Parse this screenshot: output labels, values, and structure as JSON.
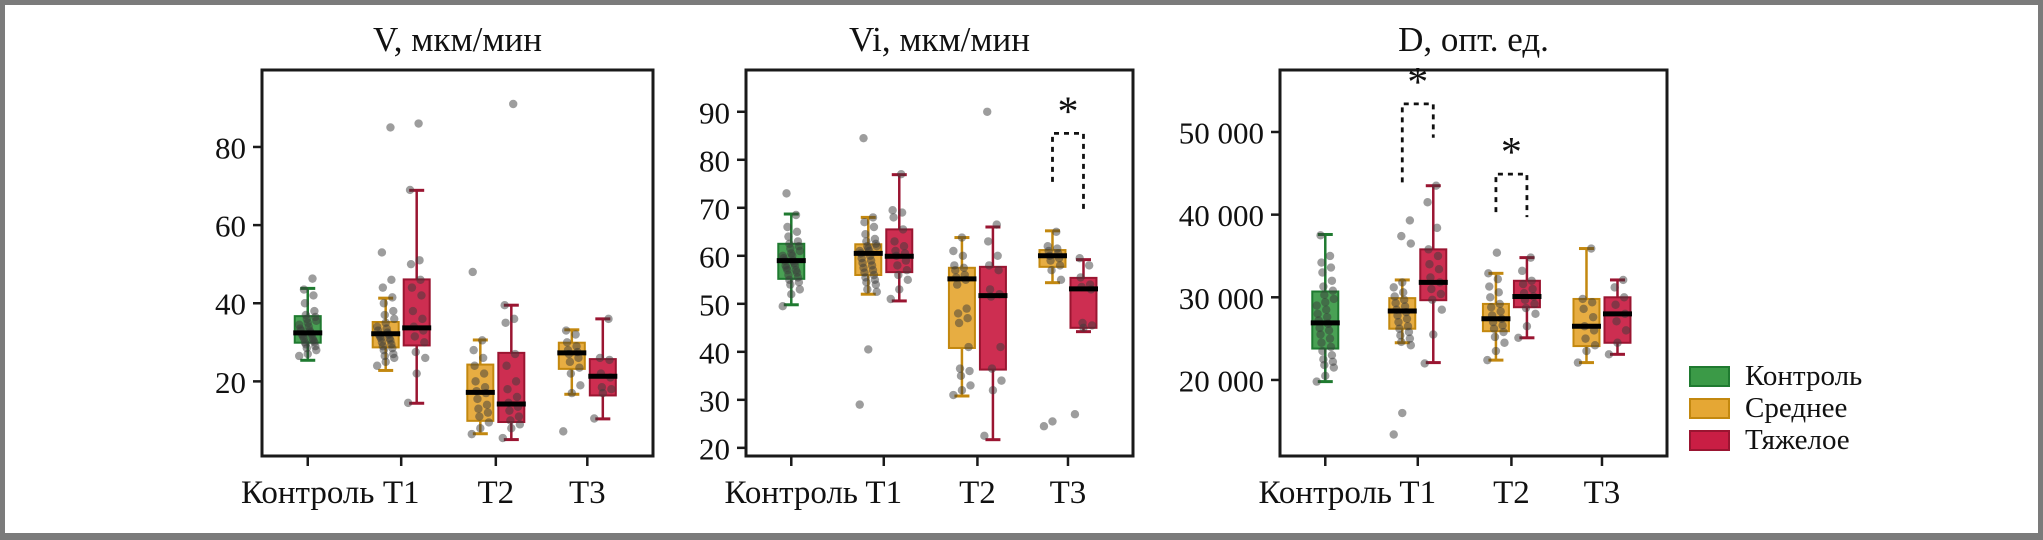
{
  "figure": {
    "background": "#ffffff",
    "border_color": "#7b7b7b",
    "point_color": "#3c3c3c",
    "median_color": "#000000",
    "axis_color": "#1a1a1a"
  },
  "legend": {
    "position": "right",
    "items": [
      {
        "label": "Контроль",
        "color": "#3b9a47",
        "border": "#1f7a30"
      },
      {
        "label": "Среднее",
        "color": "#e5a734",
        "border": "#c3880f"
      },
      {
        "label": "Тяжелое",
        "color": "#c91e44",
        "border": "#9a1531"
      }
    ]
  },
  "chart_data": [
    {
      "type": "box",
      "title": "V, мкм/мин",
      "xlabel": "",
      "ylabel": "",
      "categories": [
        "Контроль",
        "T1",
        "T2",
        "T3"
      ],
      "ylim": [
        0.9,
        99.7
      ],
      "yticks": [
        20,
        40,
        60,
        80
      ],
      "ytick_labels": [
        "20",
        "40",
        "60",
        "80"
      ],
      "grid": false,
      "groups": [
        {
          "category": "Контроль",
          "boxes": [
            {
              "series": "Контроль",
              "whislo": 25.4,
              "q1": 29.9,
              "med": 32.4,
              "q3": 36.7,
              "whishi": 43.8,
              "points": [
                26.5,
                27,
                28,
                28.5,
                29,
                29.5,
                30,
                30,
                30.5,
                31,
                31,
                31.5,
                32,
                32,
                32.5,
                33,
                33,
                33.5,
                34,
                34.5,
                35,
                35.5,
                36,
                36.5,
                37,
                38,
                40,
                42,
                43.5,
                46.3
              ]
            }
          ]
        },
        {
          "category": "T1",
          "boxes": [
            {
              "series": "Среднее",
              "whislo": 22.8,
              "q1": 28.7,
              "med": 32.2,
              "q3": 35.2,
              "whishi": 41.3,
              "points": [
                24,
                25,
                26,
                26.5,
                27,
                28,
                28.5,
                29,
                29.5,
                30,
                30.5,
                31,
                31,
                31.5,
                32,
                32,
                32.5,
                33,
                33.5,
                34,
                35,
                36,
                37,
                38,
                40,
                41.5,
                44,
                46,
                53,
                85
              ]
            },
            {
              "series": "Тяжелое",
              "whislo": 14.4,
              "q1": 29.2,
              "med": 33.7,
              "q3": 46.1,
              "whishi": 68.9,
              "points": [
                14.5,
                22,
                26,
                27.5,
                30,
                31.5,
                33,
                34,
                36,
                38,
                42,
                44,
                46,
                50,
                51,
                69,
                86
              ]
            }
          ]
        },
        {
          "category": "T2",
          "boxes": [
            {
              "series": "Среднее",
              "whislo": 6.6,
              "q1": 9.9,
              "med": 17.2,
              "q3": 24.3,
              "whishi": 30.6,
              "points": [
                6.5,
                8,
                9.5,
                11,
                12,
                13,
                14,
                15.5,
                17,
                17.5,
                18.5,
                20,
                22,
                24,
                26,
                28,
                30.5,
                48
              ]
            },
            {
              "series": "Тяжелое",
              "whislo": 5.1,
              "q1": 9.6,
              "med": 14.2,
              "q3": 27.3,
              "whishi": 39.5,
              "points": [
                5.5,
                8,
                9,
                10,
                11,
                12.5,
                13.5,
                14.5,
                16,
                18,
                20,
                24,
                27,
                35,
                36,
                39.5,
                91
              ]
            }
          ]
        },
        {
          "category": "T3",
          "boxes": [
            {
              "series": "Среднее",
              "whislo": 16.7,
              "q1": 23.2,
              "med": 27.3,
              "q3": 29.9,
              "whishi": 33.2,
              "points": [
                7.2,
                17,
                19,
                22,
                23.5,
                25,
                26,
                27,
                27.5,
                28,
                29,
                30,
                32,
                33
              ]
            },
            {
              "series": "Тяжелое",
              "whislo": 10.4,
              "q1": 16.4,
              "med": 21.3,
              "q3": 25.7,
              "whishi": 36,
              "points": [
                10.5,
                17,
                18,
                18.5,
                21,
                22,
                25.5,
                26,
                36
              ]
            }
          ]
        }
      ],
      "brackets": []
    },
    {
      "type": "box",
      "title": "Vi, мкм/мин",
      "xlabel": "",
      "ylabel": "",
      "categories": [
        "Контроль",
        "T1",
        "T2",
        "T3"
      ],
      "ylim": [
        18.3,
        98.7
      ],
      "yticks": [
        20,
        30,
        40,
        50,
        60,
        70,
        80,
        90
      ],
      "ytick_labels": [
        "20",
        "30",
        "40",
        "50",
        "60",
        "70",
        "80",
        "90"
      ],
      "grid": false,
      "groups": [
        {
          "category": "Контроль",
          "boxes": [
            {
              "series": "Контроль",
              "whislo": 49.8,
              "q1": 55.2,
              "med": 59,
              "q3": 62.5,
              "whishi": 68.7,
              "points": [
                49.5,
                52,
                53,
                54,
                54.5,
                55,
                55.5,
                56,
                56.5,
                57,
                57,
                57.5,
                58,
                58,
                58.5,
                59,
                59,
                59.5,
                60,
                60,
                60.5,
                61,
                61.5,
                62,
                62.5,
                63,
                64,
                65,
                66,
                68.5,
                73
              ]
            }
          ]
        },
        {
          "category": "T1",
          "boxes": [
            {
              "series": "Среднее",
              "whislo": 52,
              "q1": 56,
              "med": 60.5,
              "q3": 62.4,
              "whishi": 68,
              "points": [
                29,
                40.5,
                52.5,
                53,
                54,
                54.5,
                55,
                55.5,
                56,
                56.5,
                57,
                57.5,
                58,
                58.5,
                59,
                59.5,
                60,
                60.5,
                61,
                61,
                61.5,
                62,
                62,
                62.5,
                63,
                63.5,
                64.5,
                66,
                67,
                68,
                84.5
              ]
            },
            {
              "series": "Тяжелое",
              "whislo": 50.6,
              "q1": 56.6,
              "med": 59.9,
              "q3": 65.5,
              "whishi": 76.9,
              "points": [
                51,
                53,
                55,
                56,
                57,
                58,
                59,
                60,
                60.5,
                61,
                62,
                63,
                65.5,
                68,
                69,
                69.5,
                77
              ]
            }
          ]
        },
        {
          "category": "T2",
          "boxes": [
            {
              "series": "Среднее",
              "whislo": 30.8,
              "q1": 40.8,
              "med": 55.2,
              "q3": 57.5,
              "whishi": 63.8,
              "points": [
                31,
                32,
                33,
                35,
                36,
                36.5,
                41,
                46,
                47,
                48,
                49,
                54,
                55,
                55.5,
                56,
                57,
                57.5,
                58,
                60,
                61,
                63.8
              ]
            },
            {
              "series": "Тяжелое",
              "whislo": 21.7,
              "q1": 36.3,
              "med": 51.7,
              "q3": 57.7,
              "whishi": 66,
              "points": [
                22.5,
                32,
                34,
                36.5,
                41,
                51.5,
                52,
                53,
                57,
                58,
                60,
                63,
                66.5,
                90
              ]
            }
          ]
        },
        {
          "category": "T3",
          "boxes": [
            {
              "series": "Среднее",
              "whislo": 54.4,
              "q1": 57.7,
              "med": 60,
              "q3": 61.2,
              "whishi": 65.2,
              "points": [
                24.5,
                25.5,
                55,
                57,
                58,
                59,
                59.5,
                60,
                60.5,
                61,
                61.5,
                62,
                65
              ]
            },
            {
              "series": "Тяжелое",
              "whislo": 44.2,
              "q1": 45,
              "med": 53.1,
              "q3": 55.4,
              "whishi": 59.2,
              "points": [
                27,
                45,
                45.5,
                46,
                53,
                53.5,
                54,
                55.5,
                58,
                59.5
              ]
            }
          ]
        }
      ],
      "brackets": [
        {
          "category": "T3",
          "label": "*",
          "top": 85.5,
          "left_drop": 75.4,
          "right_drop": 69.6
        }
      ]
    },
    {
      "type": "box",
      "title": "D, опт. ед.",
      "xlabel": "",
      "ylabel": "",
      "categories": [
        "Контроль",
        "T1",
        "T2",
        "T3"
      ],
      "ylim": [
        10800,
        57500
      ],
      "yticks": [
        20000,
        30000,
        40000,
        50000
      ],
      "ytick_labels": [
        "20 000",
        "30 000",
        "40 000",
        "50 000"
      ],
      "grid": false,
      "groups": [
        {
          "category": "Контроль",
          "boxes": [
            {
              "series": "Контроль",
              "whislo": 19800,
              "q1": 23800,
              "med": 26900,
              "q3": 30700,
              "whishi": 37600,
              "points": [
                19800,
                20500,
                21500,
                21800,
                22200,
                22500,
                23000,
                23500,
                24000,
                24500,
                25000,
                25500,
                26000,
                26300,
                26800,
                27200,
                27600,
                28000,
                28500,
                29000,
                29400,
                29800,
                30300,
                30800,
                31300,
                32000,
                33000,
                33600,
                34200,
                35000,
                37500
              ]
            }
          ]
        },
        {
          "category": "T1",
          "boxes": [
            {
              "series": "Среднее",
              "whislo": 24500,
              "q1": 26200,
              "med": 28350,
              "q3": 29900,
              "whishi": 32100,
              "points": [
                13400,
                16000,
                24200,
                24600,
                25000,
                25400,
                25800,
                26200,
                26500,
                27000,
                27400,
                27800,
                28200,
                28500,
                28900,
                29300,
                29700,
                30100,
                30600,
                31200,
                31800,
                36500,
                37400,
                39300
              ]
            },
            {
              "series": "Тяжелое",
              "whislo": 22100,
              "q1": 29650,
              "med": 31800,
              "q3": 35800,
              "whishi": 43500,
              "points": [
                22000,
                25500,
                28500,
                29700,
                30400,
                31000,
                31800,
                32400,
                33400,
                34000,
                35000,
                35800,
                38400,
                41500,
                43500
              ]
            }
          ]
        },
        {
          "category": "T2",
          "boxes": [
            {
              "series": "Среднее",
              "whislo": 22400,
              "q1": 25900,
              "med": 27400,
              "q3": 29200,
              "whishi": 32900,
              "points": [
                22400,
                23500,
                24500,
                25200,
                25800,
                26200,
                26600,
                27000,
                27400,
                27800,
                28300,
                28800,
                29200,
                30000,
                30600,
                31300,
                32200,
                32900,
                35400
              ]
            },
            {
              "series": "Тяжелое",
              "whislo": 25100,
              "q1": 28800,
              "med": 30100,
              "q3": 32000,
              "whishi": 34800,
              "points": [
                25100,
                26500,
                28000,
                28700,
                29200,
                29700,
                30100,
                30500,
                31000,
                31600,
                32000,
                33200,
                34800
              ]
            }
          ]
        },
        {
          "category": "T3",
          "boxes": [
            {
              "series": "Среднее",
              "whislo": 22100,
              "q1": 24100,
              "med": 26500,
              "q3": 29800,
              "whishi": 35900,
              "points": [
                22100,
                23500,
                24200,
                25000,
                26000,
                26500,
                27600,
                28600,
                29400,
                29800,
                35900
              ]
            },
            {
              "series": "Тяжелое",
              "whislo": 23100,
              "q1": 24500,
              "med": 28000,
              "q3": 30000,
              "whishi": 32100,
              "points": [
                23100,
                24500,
                26000,
                27100,
                28000,
                29100,
                30000,
                31200,
                32100
              ]
            }
          ]
        }
      ],
      "brackets": [
        {
          "category": "T1",
          "label": "*",
          "top": 53400,
          "left_drop": 43900,
          "right_drop": 49300
        },
        {
          "category": "T2",
          "label": "*",
          "top": 44900,
          "left_drop": 40300,
          "right_drop": 39700
        }
      ]
    }
  ]
}
